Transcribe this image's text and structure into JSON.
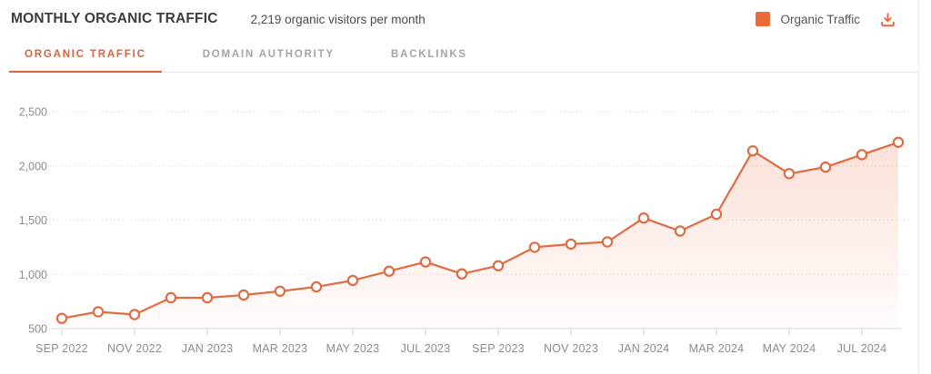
{
  "header": {
    "title": "MONTHLY ORGANIC TRAFFIC",
    "subtitle": "2,219 organic visitors per month",
    "legend_label": "Organic Traffic"
  },
  "tabs": [
    {
      "label": "ORGANIC TRAFFIC",
      "active": true
    },
    {
      "label": "DOMAIN AUTHORITY",
      "active": false
    },
    {
      "label": "BACKLINKS",
      "active": false
    }
  ],
  "colors": {
    "line": "#df6b43",
    "marker_fill": "#ffffff",
    "legend_square": "#eb6a36",
    "tab_active": "#d96340",
    "grid_dotted": "#dedede",
    "baseline": "#d9d9d9",
    "tick": "#cdcdcd",
    "axis_text": "#8c8c8c",
    "area_top": "rgba(232,106,60,0.20)",
    "area_bottom": "rgba(232,106,60,0.02)"
  },
  "chart_data": {
    "type": "line",
    "title": "MONTHLY ORGANIC TRAFFIC",
    "x": [
      "SEP 2022",
      "OCT 2022",
      "NOV 2022",
      "DEC 2022",
      "JAN 2023",
      "FEB 2023",
      "MAR 2023",
      "APR 2023",
      "MAY 2023",
      "JUN 2023",
      "JUL 2023",
      "AUG 2023",
      "SEP 2023",
      "OCT 2023",
      "NOV 2023",
      "DEC 2023",
      "JAN 2024",
      "FEB 2024",
      "MAR 2024",
      "APR 2024",
      "MAY 2024",
      "JUN 2024",
      "JUL 2024",
      "AUG 2024"
    ],
    "series": [
      {
        "name": "Organic Traffic",
        "values": [
          595,
          655,
          630,
          785,
          785,
          810,
          845,
          885,
          945,
          1030,
          1115,
          1005,
          1080,
          1250,
          1280,
          1300,
          1520,
          1400,
          1555,
          2140,
          1930,
          1990,
          2105,
          2219
        ]
      }
    ],
    "x_tick_labels": [
      "SEP 2022",
      "NOV 2022",
      "JAN 2023",
      "MAR 2023",
      "MAY 2023",
      "JUL 2023",
      "SEP 2023",
      "NOV 2023",
      "JAN 2024",
      "MAR 2024",
      "MAY 2024",
      "JUL 2024"
    ],
    "y_ticks": [
      {
        "value": 500,
        "label": "500"
      },
      {
        "value": 1000,
        "label": "1,000"
      },
      {
        "value": 1500,
        "label": "1,500"
      },
      {
        "value": 2000,
        "label": "2,000"
      },
      {
        "value": 2500,
        "label": "2,500"
      }
    ],
    "ylim": [
      500,
      2500
    ],
    "xlabel": "",
    "ylabel": "",
    "grid": "horizontal-dotted",
    "legend_position": "top-right",
    "marker": "open-circle",
    "area_fill": true
  }
}
